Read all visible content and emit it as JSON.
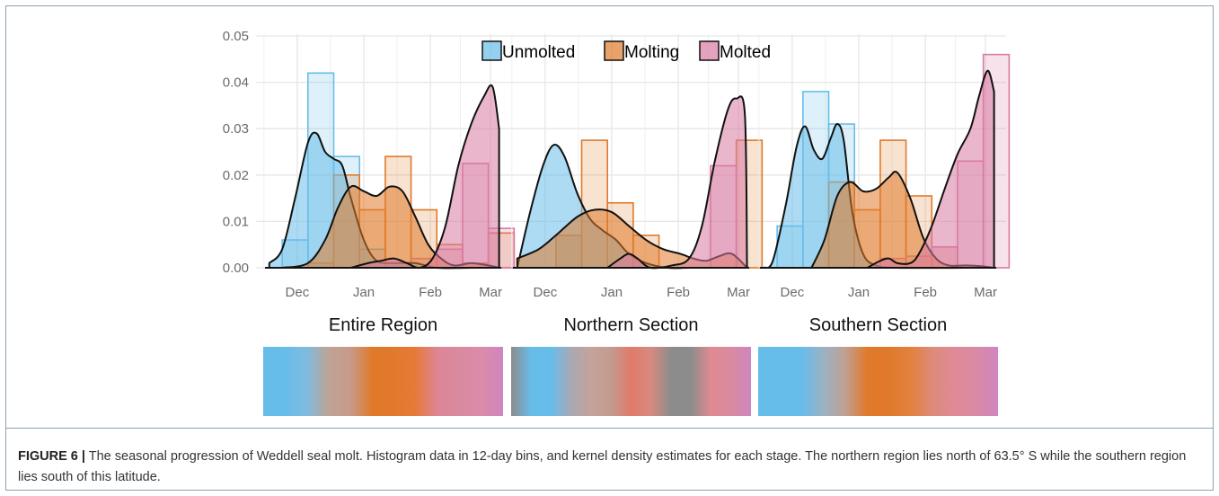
{
  "figure": {
    "caption_label": "FIGURE 6 |",
    "caption_text": "The seasonal progression of Weddell seal molt. Histogram data in 12-day bins, and kernel density estimates for each stage. The northern region lies north of 63.5° S while the southern region lies south of this latitude."
  },
  "colors": {
    "Unmolted": "#67bdea",
    "Molting": "#e07a2a",
    "Molted": "#d97aa3",
    "grid": "#e6e6e6",
    "gap": "#8c8c8c"
  },
  "chart_data": {
    "type": "bar",
    "description_type": "histogram with kernel density overlays, three facets",
    "y_ticks": [
      "0.00",
      "0.01",
      "0.02",
      "0.03",
      "0.04",
      "0.05"
    ],
    "ylim": [
      0,
      0.05
    ],
    "x_ticks": [
      "Dec",
      "Jan",
      "Feb",
      "Mar"
    ],
    "legend": {
      "position": "top",
      "entries": [
        "Unmolted",
        "Molting",
        "Molted"
      ]
    },
    "grid": true,
    "bin_width_days": 12,
    "panels": [
      {
        "title": "Entire Region",
        "histograms": {
          "Unmolted": [
            [
              -12,
              0.006
            ],
            [
              0,
              0.042
            ],
            [
              12,
              0.024
            ],
            [
              24,
              0.004
            ],
            [
              36,
              0.0
            ],
            [
              48,
              0.0
            ],
            [
              60,
              0.0
            ],
            [
              72,
              0.0
            ],
            [
              84,
              0.0
            ]
          ],
          "Molting": [
            [
              -12,
              0.0
            ],
            [
              0,
              0.001
            ],
            [
              12,
              0.02
            ],
            [
              24,
              0.0125
            ],
            [
              36,
              0.024
            ],
            [
              48,
              0.0125
            ],
            [
              60,
              0.005
            ],
            [
              72,
              0.001
            ],
            [
              84,
              0.0075
            ]
          ],
          "Molted": [
            [
              -12,
              0.0
            ],
            [
              0,
              0.0
            ],
            [
              12,
              0.0
            ],
            [
              24,
              0.0
            ],
            [
              36,
              0.001
            ],
            [
              48,
              0.002
            ],
            [
              60,
              0.004
            ],
            [
              72,
              0.0225
            ],
            [
              84,
              0.0085
            ]
          ]
        },
        "kde": {
          "Unmolted": [
            [
              -18,
              0.001
            ],
            [
              -12,
              0.004
            ],
            [
              -6,
              0.015
            ],
            [
              0,
              0.027
            ],
            [
              4,
              0.029
            ],
            [
              8,
              0.025
            ],
            [
              12,
              0.0235
            ],
            [
              16,
              0.022
            ],
            [
              20,
              0.015
            ],
            [
              26,
              0.006
            ],
            [
              32,
              0.0015
            ],
            [
              40,
              0.001
            ],
            [
              50,
              0.001
            ],
            [
              60,
              0.0
            ],
            [
              76,
              0.0
            ]
          ],
          "Molting": [
            [
              -12,
              0.0
            ],
            [
              0,
              0.001
            ],
            [
              8,
              0.006
            ],
            [
              14,
              0.013
            ],
            [
              20,
              0.0175
            ],
            [
              26,
              0.0165
            ],
            [
              32,
              0.0155
            ],
            [
              38,
              0.0175
            ],
            [
              44,
              0.0165
            ],
            [
              50,
              0.011
            ],
            [
              56,
              0.005
            ],
            [
              62,
              0.002
            ],
            [
              68,
              0.0005
            ],
            [
              76,
              0.001
            ],
            [
              84,
              0.0005
            ],
            [
              89,
              0.0
            ]
          ],
          "Molted": [
            [
              20,
              0.0
            ],
            [
              28,
              0.001
            ],
            [
              34,
              0.0015
            ],
            [
              40,
              0.002
            ],
            [
              46,
              0.001
            ],
            [
              52,
              0.0
            ],
            [
              58,
              0.002
            ],
            [
              64,
              0.009
            ],
            [
              70,
              0.022
            ],
            [
              76,
              0.031
            ],
            [
              82,
              0.037
            ],
            [
              86,
              0.039
            ],
            [
              89,
              0.03
            ]
          ]
        },
        "gradient_bar": [
          "#67bdea",
          "#67bdea",
          "#7fbbe0",
          "#bfa396",
          "#c69a8a",
          "#e07a2a",
          "#e07a2a",
          "#e67a3a",
          "#de8596",
          "#d98aa0",
          "#dd8aa8",
          "#cf86c0"
        ]
      },
      {
        "title": "Northern Section",
        "histograms": {
          "Unmolted": [
            [
              -12,
              0.0
            ],
            [
              0,
              0.007
            ],
            [
              12,
              0.0
            ],
            [
              24,
              0.0
            ],
            [
              36,
              0.0
            ],
            [
              48,
              0.0
            ],
            [
              60,
              0.0
            ],
            [
              72,
              0.0
            ],
            [
              84,
              0.0
            ]
          ],
          "Molting": [
            [
              -12,
              0.0
            ],
            [
              0,
              0.007
            ],
            [
              12,
              0.0275
            ],
            [
              24,
              0.014
            ],
            [
              36,
              0.007
            ],
            [
              48,
              0.0
            ],
            [
              60,
              0.0
            ],
            [
              72,
              0.0
            ],
            [
              84,
              0.0275
            ]
          ],
          "Molted": [
            [
              -12,
              0.0
            ],
            [
              0,
              0.0
            ],
            [
              12,
              0.0
            ],
            [
              24,
              0.0
            ],
            [
              36,
              0.0
            ],
            [
              48,
              0.0
            ],
            [
              60,
              0.0
            ],
            [
              72,
              0.022
            ],
            [
              84,
              0.0
            ]
          ]
        },
        "kde": {
          "Unmolted": [
            [
              -18,
              0.0
            ],
            [
              -12,
              0.012
            ],
            [
              -6,
              0.022
            ],
            [
              -1,
              0.0265
            ],
            [
              4,
              0.024
            ],
            [
              10,
              0.016
            ],
            [
              16,
              0.0105
            ],
            [
              22,
              0.008
            ],
            [
              28,
              0.006
            ],
            [
              34,
              0.003
            ],
            [
              42,
              0.001
            ],
            [
              52,
              0.0
            ],
            [
              62,
              0.0
            ],
            [
              76,
              0.0
            ]
          ],
          "Molting": [
            [
              -18,
              0.002
            ],
            [
              -8,
              0.004
            ],
            [
              0,
              0.007
            ],
            [
              10,
              0.011
            ],
            [
              18,
              0.0125
            ],
            [
              26,
              0.012
            ],
            [
              34,
              0.009
            ],
            [
              42,
              0.006
            ],
            [
              50,
              0.004
            ],
            [
              58,
              0.003
            ],
            [
              64,
              0.002
            ],
            [
              70,
              0.0015
            ],
            [
              76,
              0.0025
            ],
            [
              82,
              0.003
            ],
            [
              89,
              0.0
            ]
          ],
          "Molted": [
            [
              24,
              0.0
            ],
            [
              30,
              0.002
            ],
            [
              34,
              0.003
            ],
            [
              38,
              0.002
            ],
            [
              44,
              0.0
            ],
            [
              54,
              0.0005
            ],
            [
              62,
              0.002
            ],
            [
              68,
              0.009
            ],
            [
              74,
              0.023
            ],
            [
              80,
              0.034
            ],
            [
              84,
              0.0365
            ],
            [
              88,
              0.033
            ],
            [
              89,
              0.0
            ]
          ]
        },
        "gradient_bar": [
          "#8c8c8c",
          "#67bdea",
          "#67bdea",
          "#a9a8b4",
          "#c4a39a",
          "#c49a8f",
          "#e07a6a",
          "#d78a80",
          "#8c8c8c",
          "#8c8c8c",
          "#e08a90",
          "#d98aa0",
          "#cf86c0"
        ]
      },
      {
        "title": "Southern Section",
        "histograms": {
          "Unmolted": [
            [
              -12,
              0.009
            ],
            [
              0,
              0.038
            ],
            [
              12,
              0.031
            ],
            [
              24,
              0.0
            ],
            [
              36,
              0.0
            ],
            [
              48,
              0.0
            ],
            [
              60,
              0.0
            ],
            [
              72,
              0.0
            ],
            [
              84,
              0.0
            ]
          ],
          "Molting": [
            [
              -12,
              0.0
            ],
            [
              0,
              0.0
            ],
            [
              12,
              0.0185
            ],
            [
              24,
              0.0125
            ],
            [
              36,
              0.0275
            ],
            [
              48,
              0.0155
            ],
            [
              60,
              0.0045
            ],
            [
              72,
              0.0
            ],
            [
              84,
              0.0
            ]
          ],
          "Molted": [
            [
              -12,
              0.0
            ],
            [
              0,
              0.0
            ],
            [
              12,
              0.0
            ],
            [
              24,
              0.0
            ],
            [
              36,
              0.002
            ],
            [
              48,
              0.0025
            ],
            [
              60,
              0.0045
            ],
            [
              72,
              0.023
            ],
            [
              84,
              0.046
            ]
          ]
        },
        "kde": {
          "Unmolted": [
            [
              -18,
              0.0
            ],
            [
              -14,
              0.0015
            ],
            [
              -8,
              0.0135
            ],
            [
              -3,
              0.026
            ],
            [
              1,
              0.0305
            ],
            [
              5,
              0.0255
            ],
            [
              9,
              0.0235
            ],
            [
              13,
              0.028
            ],
            [
              16,
              0.031
            ],
            [
              19,
              0.0275
            ],
            [
              23,
              0.012
            ],
            [
              28,
              0.003
            ],
            [
              34,
              0.0005
            ],
            [
              44,
              0.0
            ],
            [
              76,
              0.0
            ]
          ],
          "Molting": [
            [
              4,
              0.0
            ],
            [
              10,
              0.006
            ],
            [
              16,
              0.0155
            ],
            [
              22,
              0.0185
            ],
            [
              28,
              0.0165
            ],
            [
              34,
              0.017
            ],
            [
              40,
              0.0195
            ],
            [
              44,
              0.0205
            ],
            [
              50,
              0.015
            ],
            [
              56,
              0.0065
            ],
            [
              62,
              0.002
            ],
            [
              68,
              0.0005
            ],
            [
              76,
              0.0005
            ],
            [
              84,
              0.0003
            ],
            [
              89,
              0.0
            ]
          ],
          "Molted": [
            [
              30,
              0.0
            ],
            [
              36,
              0.0015
            ],
            [
              40,
              0.002
            ],
            [
              44,
              0.001
            ],
            [
              50,
              0.001
            ],
            [
              54,
              0.003
            ],
            [
              60,
              0.009
            ],
            [
              66,
              0.017
            ],
            [
              72,
              0.0245
            ],
            [
              78,
              0.03
            ],
            [
              82,
              0.037
            ],
            [
              86,
              0.0425
            ],
            [
              89,
              0.038
            ]
          ]
        },
        "gradient_bar": [
          "#67bdea",
          "#67bdea",
          "#67bdea",
          "#9cb1c2",
          "#c0a092",
          "#e07a2a",
          "#e07a2a",
          "#e2813e",
          "#de8a7a",
          "#df8a96",
          "#d98aa4",
          "#cf86c0"
        ]
      }
    ]
  }
}
